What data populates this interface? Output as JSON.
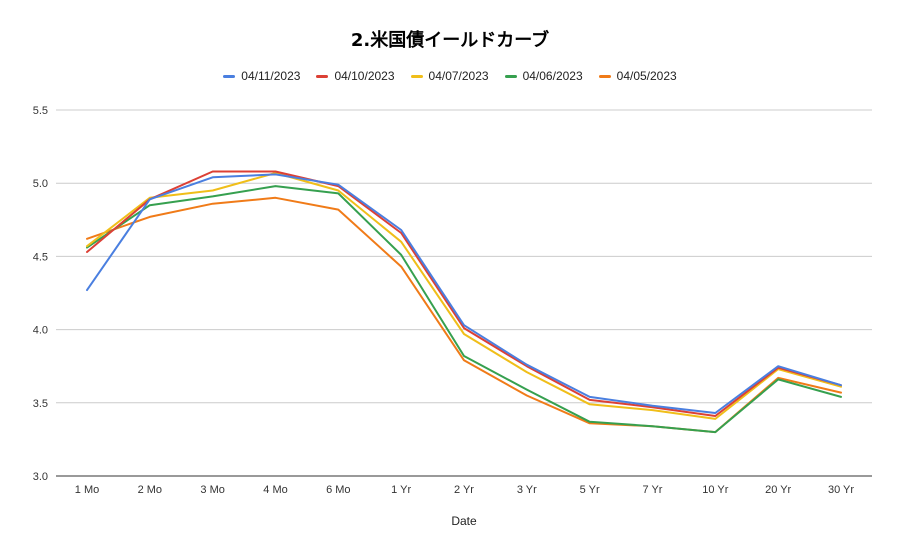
{
  "chart_data": {
    "type": "line",
    "title": "2.米国債イールドカーブ",
    "xlabel": "Date",
    "ylabel": "",
    "ylim": [
      3.0,
      5.5
    ],
    "yticks": [
      "3.0",
      "3.5",
      "4.0",
      "4.5",
      "5.0",
      "5.5"
    ],
    "grid": true,
    "legend_position": "top",
    "categories": [
      "1 Mo",
      "2 Mo",
      "3 Mo",
      "4 Mo",
      "6 Mo",
      "1 Yr",
      "2 Yr",
      "3 Yr",
      "5 Yr",
      "7 Yr",
      "10 Yr",
      "20 Yr",
      "30 Yr"
    ],
    "series": [
      {
        "name": "04/11/2023",
        "color": "#4a7fe0",
        "values": [
          4.27,
          4.89,
          5.04,
          5.06,
          4.99,
          4.68,
          4.03,
          3.76,
          3.54,
          3.48,
          3.43,
          3.75,
          3.62
        ]
      },
      {
        "name": "04/10/2023",
        "color": "#dc4035",
        "values": [
          4.53,
          4.89,
          5.08,
          5.08,
          4.98,
          4.66,
          4.01,
          3.75,
          3.52,
          3.47,
          3.41,
          3.74,
          3.62
        ]
      },
      {
        "name": "04/07/2023",
        "color": "#f0be19",
        "values": [
          4.57,
          4.9,
          4.95,
          5.07,
          4.95,
          4.6,
          3.97,
          3.71,
          3.49,
          3.45,
          3.39,
          3.73,
          3.61
        ]
      },
      {
        "name": "04/06/2023",
        "color": "#36a04f",
        "values": [
          4.56,
          4.85,
          4.91,
          4.98,
          4.93,
          4.51,
          3.82,
          3.59,
          3.37,
          3.34,
          3.3,
          3.66,
          3.54
        ]
      },
      {
        "name": "04/05/2023",
        "color": "#f07b18",
        "values": [
          4.62,
          4.77,
          4.86,
          4.9,
          4.82,
          4.43,
          3.79,
          3.55,
          3.36,
          3.34,
          3.3,
          3.67,
          3.57
        ]
      }
    ]
  }
}
